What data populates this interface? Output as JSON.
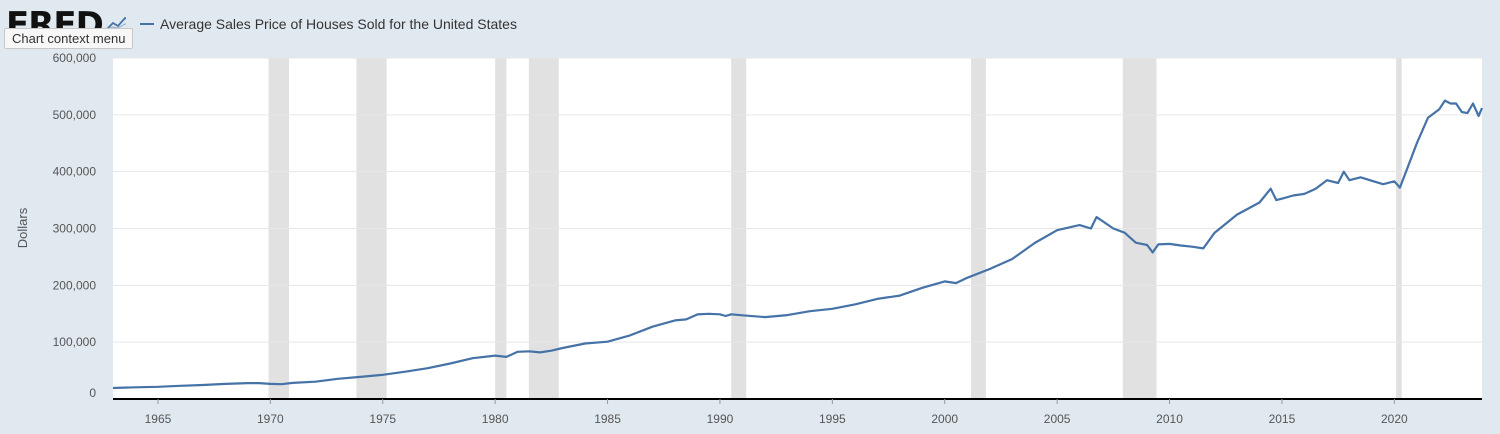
{
  "header": {
    "logo_text": "FRED",
    "tooltip": "Chart context menu"
  },
  "colors": {
    "series": "#4572a7",
    "recession": "#e1e1e1",
    "plot_bg": "#ffffff",
    "page_bg": "#e1e9f0",
    "grid": "#e6e6e6"
  },
  "chart_data": {
    "type": "line",
    "ylabel": "Dollars",
    "ylim": [
      0,
      600000
    ],
    "xlim": [
      1963.0,
      2023.9
    ],
    "grid": "horizontal",
    "legend_position": "top-left",
    "y_ticks": [
      0,
      100000,
      200000,
      300000,
      400000,
      500000,
      600000
    ],
    "y_tick_labels": [
      "0",
      "100,000",
      "200,000",
      "300,000",
      "400,000",
      "500,000",
      "600,000"
    ],
    "x_ticks": [
      1965,
      1970,
      1975,
      1980,
      1985,
      1990,
      1995,
      2000,
      2005,
      2010,
      2015,
      2020
    ],
    "x_tick_labels": [
      "1965",
      "1970",
      "1975",
      "1980",
      "1985",
      "1990",
      "1995",
      "2000",
      "2005",
      "2010",
      "2015",
      "2020"
    ],
    "recessions": [
      [
        1969.92,
        1970.83
      ],
      [
        1973.83,
        1975.17
      ],
      [
        1980.0,
        1980.5
      ],
      [
        1981.5,
        1982.83
      ],
      [
        1990.5,
        1991.17
      ],
      [
        2001.17,
        2001.83
      ],
      [
        2007.92,
        2009.42
      ],
      [
        2020.08,
        2020.33
      ]
    ],
    "series": [
      {
        "name": "Average Sales Price of Houses Sold for the United States",
        "x": [
          1963.0,
          1964.0,
          1965.0,
          1966.0,
          1967.0,
          1968.0,
          1969.0,
          1969.5,
          1970.0,
          1970.5,
          1971.0,
          1972.0,
          1973.0,
          1974.0,
          1975.0,
          1976.0,
          1977.0,
          1978.0,
          1979.0,
          1980.0,
          1980.5,
          1981.0,
          1981.5,
          1982.0,
          1982.5,
          1983.0,
          1984.0,
          1985.0,
          1986.0,
          1987.0,
          1988.0,
          1988.5,
          1989.0,
          1989.5,
          1990.0,
          1990.25,
          1990.5,
          1991.0,
          1992.0,
          1993.0,
          1994.0,
          1995.0,
          1996.0,
          1997.0,
          1998.0,
          1999.0,
          2000.0,
          2000.5,
          2001.0,
          2002.0,
          2003.0,
          2004.0,
          2005.0,
          2006.0,
          2006.5,
          2006.75,
          2007.0,
          2007.5,
          2008.0,
          2008.5,
          2009.0,
          2009.25,
          2009.5,
          2010.0,
          2010.5,
          2011.0,
          2011.5,
          2012.0,
          2013.0,
          2014.0,
          2014.5,
          2014.75,
          2015.0,
          2015.5,
          2016.0,
          2016.5,
          2017.0,
          2017.5,
          2017.75,
          2018.0,
          2018.5,
          2019.0,
          2019.5,
          2020.0,
          2020.25,
          2020.5,
          2021.0,
          2021.5,
          2022.0,
          2022.25,
          2022.5,
          2022.75,
          2023.0,
          2023.25,
          2023.5,
          2023.75,
          2023.9
        ],
        "values": [
          19300,
          20500,
          21500,
          23300,
          24600,
          26600,
          27900,
          28000,
          26600,
          26000,
          28300,
          30500,
          35500,
          38900,
          42600,
          48000,
          54200,
          62500,
          71800,
          76400,
          74000,
          83000,
          84000,
          82000,
          85000,
          89800,
          97600,
          100800,
          111900,
          127200,
          138300,
          140000,
          148800,
          150000,
          149000,
          146000,
          149000,
          147200,
          144100,
          147700,
          154500,
          158700,
          166400,
          176200,
          181900,
          195600,
          207000,
          204000,
          213200,
          228700,
          246300,
          274500,
          297000,
          305900,
          300000,
          320000,
          313600,
          300000,
          292600,
          275000,
          270900,
          258000,
          272000,
          272900,
          270000,
          267900,
          265000,
          292200,
          324500,
          345800,
          370000,
          350000,
          352500,
          358000,
          360900,
          370000,
          384900,
          380000,
          400000,
          385000,
          390000,
          383900,
          378000,
          383000,
          372000,
          398000,
          450000,
          495000,
          510000,
          525000,
          520000,
          520000,
          505000,
          503000,
          520000,
          498000,
          512000
        ]
      }
    ]
  }
}
